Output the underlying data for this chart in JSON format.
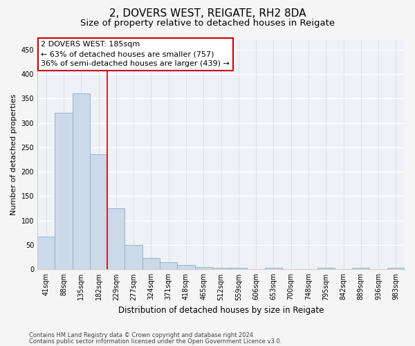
{
  "title1": "2, DOVERS WEST, REIGATE, RH2 8DA",
  "title2": "Size of property relative to detached houses in Reigate",
  "xlabel": "Distribution of detached houses by size in Reigate",
  "ylabel": "Number of detached properties",
  "categories": [
    "41sqm",
    "88sqm",
    "135sqm",
    "182sqm",
    "229sqm",
    "277sqm",
    "324sqm",
    "371sqm",
    "418sqm",
    "465sqm",
    "512sqm",
    "559sqm",
    "606sqm",
    "653sqm",
    "700sqm",
    "748sqm",
    "795sqm",
    "842sqm",
    "889sqm",
    "936sqm",
    "983sqm"
  ],
  "values": [
    67,
    320,
    360,
    235,
    125,
    50,
    23,
    14,
    9,
    5,
    3,
    3,
    0,
    3,
    0,
    0,
    3,
    0,
    3,
    0,
    3
  ],
  "bar_color": "#ccd9e8",
  "bar_edge_color": "#8aaac8",
  "vline_x": 3.5,
  "vline_color": "#cc0000",
  "annotation_line1": "2 DOVERS WEST: 185sqm",
  "annotation_line2": "← 63% of detached houses are smaller (757)",
  "annotation_line3": "36% of semi-detached houses are larger (439) →",
  "ylim": [
    0,
    470
  ],
  "yticks": [
    0,
    50,
    100,
    150,
    200,
    250,
    300,
    350,
    400,
    450
  ],
  "footer_line1": "Contains HM Land Registry data © Crown copyright and database right 2024.",
  "footer_line2": "Contains public sector information licensed under the Open Government Licence v3.0.",
  "plot_bg_color": "#eef2f7",
  "fig_bg_color": "#f5f5f5",
  "grid_color": "#d8dfe8",
  "title1_fontsize": 11,
  "title2_fontsize": 9.5,
  "tick_fontsize": 7,
  "ylabel_fontsize": 8,
  "xlabel_fontsize": 8.5,
  "ann_fontsize": 8,
  "footer_fontsize": 6
}
